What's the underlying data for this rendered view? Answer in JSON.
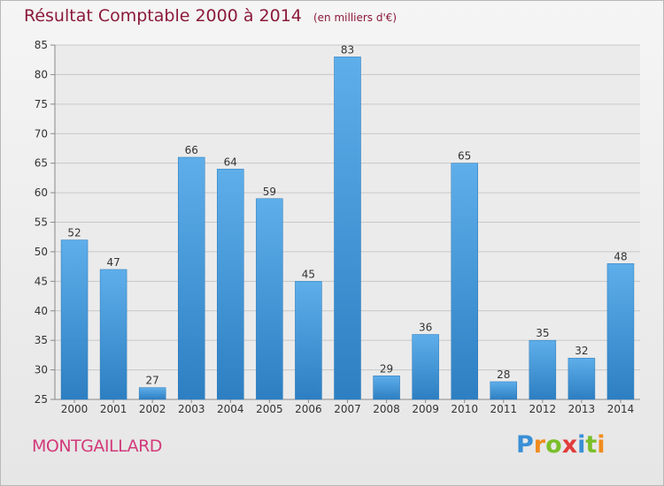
{
  "title": "Résultat Comptable 2000 à 2014",
  "unit_note": "(en milliers d'€)",
  "location": "MONTGAILLARD",
  "brand": {
    "text": "Proxiti",
    "letter_colors": [
      "#3a8fd6",
      "#f08c1e",
      "#7bbf2a",
      "#e23b3b",
      "#3a8fd6",
      "#7bbf2a",
      "#f08c1e"
    ]
  },
  "colors": {
    "bar_light": "#5eaeea",
    "bar_dark": "#2d7fc2",
    "title": "#8b1a3a",
    "location": "#d23a7a"
  },
  "chart_data": {
    "type": "bar",
    "categories": [
      "2000",
      "2001",
      "2002",
      "2003",
      "2004",
      "2005",
      "2006",
      "2007",
      "2008",
      "2009",
      "2010",
      "2011",
      "2012",
      "2013",
      "2014"
    ],
    "values": [
      52,
      47,
      27,
      66,
      64,
      59,
      45,
      83,
      29,
      36,
      65,
      28,
      35,
      32,
      48
    ],
    "ylim": [
      25,
      85
    ],
    "yticks": [
      25,
      30,
      35,
      40,
      45,
      50,
      55,
      60,
      65,
      70,
      75,
      80,
      85
    ],
    "grid": true,
    "data_labels": true
  }
}
